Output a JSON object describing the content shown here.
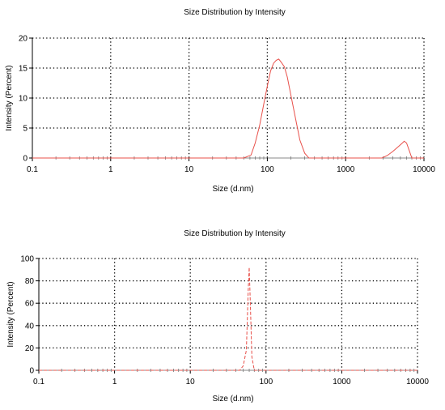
{
  "chart_data": [
    {
      "type": "line",
      "title": "Size Distribution by Intensity",
      "xlabel": "Size (d.nm)",
      "ylabel": "Intensity (Percent)",
      "xscale": "log",
      "xlim": [
        0.1,
        10000
      ],
      "ylim": [
        0,
        20
      ],
      "grid": true,
      "line_style": "solid",
      "color": "#e8504a",
      "x_ticks": [
        "0.1",
        "1",
        "10",
        "100",
        "1000",
        "10000"
      ],
      "y_ticks": [
        "0",
        "5",
        "10",
        "15",
        "20"
      ],
      "series": [
        {
          "x": [
            0.1,
            50,
            62,
            70,
            80,
            90,
            100,
            110,
            120,
            130,
            140,
            150,
            165,
            180,
            200,
            230,
            260,
            300,
            340,
            400,
            1000,
            2900,
            3400,
            4000,
            4600,
            5200,
            5600,
            6000,
            6500,
            7000,
            10000
          ],
          "values": [
            0,
            0,
            0.5,
            2.5,
            5.5,
            9,
            12,
            14.5,
            15.8,
            16.3,
            16.5,
            16.0,
            15.2,
            13.5,
            10.5,
            6.5,
            3.0,
            0.8,
            0,
            0,
            0,
            0,
            0.4,
            1.1,
            1.8,
            2.4,
            2.8,
            2.5,
            1.2,
            0,
            0
          ]
        }
      ]
    },
    {
      "type": "line",
      "title": "Size Distribution by Intensity",
      "xlabel": "Size (d.nm)",
      "ylabel": "Intensity (Percent)",
      "xscale": "log",
      "xlim": [
        0.1,
        10000
      ],
      "ylim": [
        0,
        100
      ],
      "grid": true,
      "line_style": "dashed",
      "color": "#e8504a",
      "x_ticks": [
        "0.1",
        "1",
        "10",
        "100",
        "1000",
        "10000"
      ],
      "y_ticks": [
        "0",
        "20",
        "40",
        "60",
        "80",
        "100"
      ],
      "series": [
        {
          "x": [
            0.1,
            45,
            50,
            55,
            58,
            60,
            62,
            65,
            70,
            75,
            10000
          ],
          "values": [
            0,
            0,
            4,
            18,
            70,
            92,
            60,
            12,
            0,
            0,
            0
          ]
        }
      ]
    }
  ]
}
